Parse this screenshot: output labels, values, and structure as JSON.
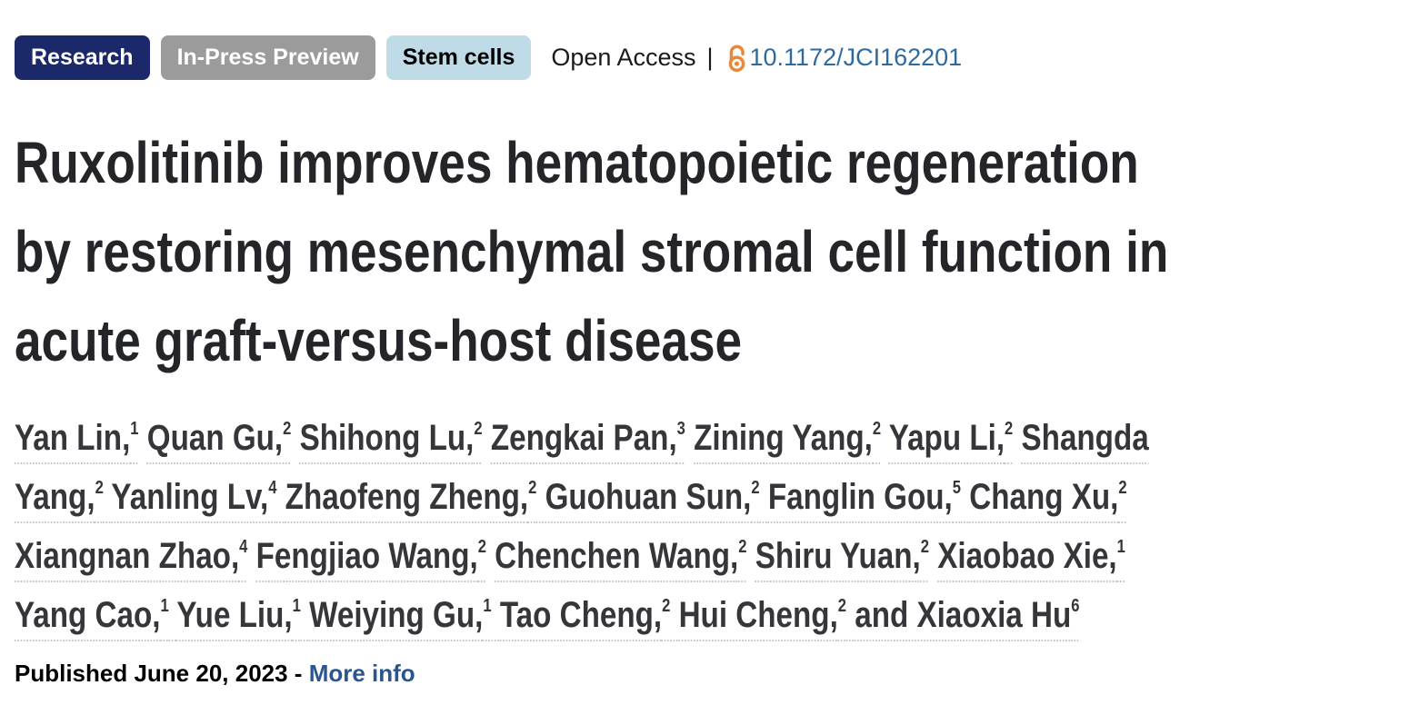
{
  "badges": [
    {
      "label": "Research",
      "bg": "#1b296b",
      "fg": "#ffffff"
    },
    {
      "label": "In-Press Preview",
      "bg": "#9b9b9b",
      "fg": "#ffffff"
    },
    {
      "label": "Stem cells",
      "bg": "#bedbe7",
      "fg": "#000000"
    }
  ],
  "access": {
    "label": "Open Access",
    "separator": "|",
    "doi": "10.1172/JCI162201"
  },
  "title_lines": [
    "Ruxolitinib improves hematopoietic regeneration",
    "by restoring mesenchymal stromal cell function in",
    "acute graft-versus-host disease"
  ],
  "authors_lines": [
    [
      {
        "name": "Yan Lin,",
        "sup": "1"
      },
      {
        "name": "Quan Gu,",
        "sup": "2"
      },
      {
        "name": "Shihong Lu,",
        "sup": "2"
      },
      {
        "name": "Zengkai Pan,",
        "sup": "3"
      },
      {
        "name": "Zining Yang,",
        "sup": "2"
      },
      {
        "name": "Yapu Li,",
        "sup": "2"
      },
      {
        "name": "Shangda",
        "sup": ""
      }
    ],
    [
      {
        "name": "Yang,",
        "sup": "2"
      },
      {
        "name": "Yanling Lv,",
        "sup": "4"
      },
      {
        "name": "Zhaofeng Zheng,",
        "sup": "2"
      },
      {
        "name": "Guohuan Sun,",
        "sup": "2"
      },
      {
        "name": "Fanglin Gou,",
        "sup": "5"
      },
      {
        "name": "Chang Xu,",
        "sup": "2"
      }
    ],
    [
      {
        "name": "Xiangnan Zhao,",
        "sup": "4"
      },
      {
        "name": "Fengjiao Wang,",
        "sup": "2"
      },
      {
        "name": "Chenchen Wang,",
        "sup": "2"
      },
      {
        "name": "Shiru Yuan,",
        "sup": "2"
      },
      {
        "name": "Xiaobao Xie,",
        "sup": "1"
      }
    ],
    [
      {
        "name": "Yang Cao,",
        "sup": "1"
      },
      {
        "name": "Yue Liu,",
        "sup": "1"
      },
      {
        "name": "Weiying Gu,",
        "sup": "1"
      },
      {
        "name": "Tao Cheng,",
        "sup": "2"
      },
      {
        "name": "Hui Cheng,",
        "sup": "2"
      },
      {
        "name": "and Xiaoxia Hu",
        "sup": "6"
      }
    ]
  ],
  "published": {
    "text": "Published June 20, 2023 -",
    "more_info_label": "More info"
  },
  "colors": {
    "doi_link": "#2d6a9f",
    "open_access_icon": "#e8883b",
    "more_info_link": "#29568f",
    "title_text": "#242529",
    "dotted_underline": "#c6c6c6"
  }
}
